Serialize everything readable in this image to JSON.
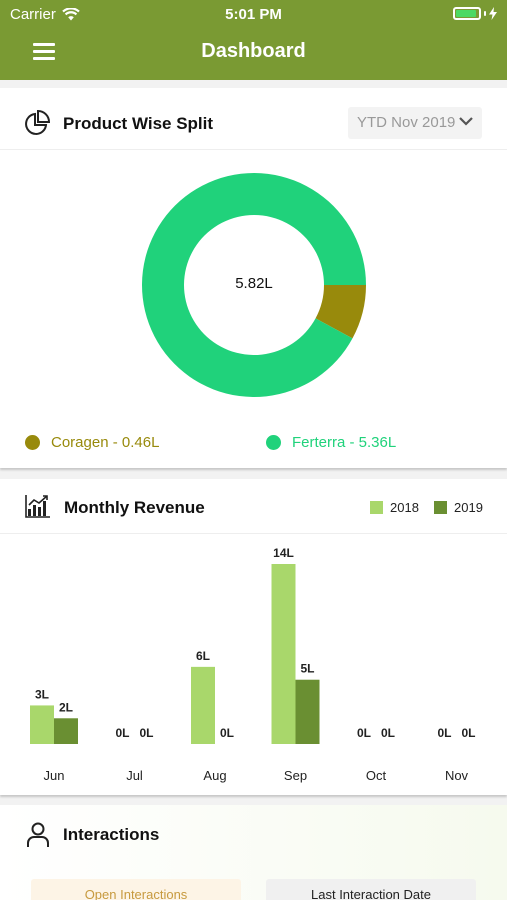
{
  "status_bar": {
    "carrier": "Carrier",
    "time": "5:01 PM"
  },
  "nav": {
    "title": "Dashboard",
    "menu_icon": "hamburger-menu-icon"
  },
  "product_split": {
    "title": "Product Wise Split",
    "icon": "pie-chart-icon",
    "period": "YTD Nov 2019",
    "center_label": "5.82L",
    "colors": {
      "coragen": "#988a0c",
      "ferterra": "#20d27b"
    },
    "legend": [
      {
        "label": "Coragen - 0.46L",
        "color": "#988a0c"
      },
      {
        "label": "Ferterra - 5.36L",
        "color": "#20d27b"
      }
    ]
  },
  "monthly_revenue": {
    "title": "Monthly Revenue",
    "icon": "bar-chart-icon",
    "legend": [
      {
        "label": "2018",
        "color": "#a9d76b"
      },
      {
        "label": "2019",
        "color": "#6a8f32"
      }
    ]
  },
  "interactions": {
    "title": "Interactions",
    "icon": "user-icon",
    "open_label": "Open Interactions",
    "last_date_label": "Last Interaction Date"
  },
  "chart_data": [
    {
      "type": "pie",
      "labels": [
        "Coragen",
        "Ferterra"
      ],
      "values": [
        0.46,
        5.36
      ],
      "unit": "L",
      "total": 5.82
    },
    {
      "type": "bar",
      "categories": [
        "Jun",
        "Jul",
        "Aug",
        "Sep",
        "Oct",
        "Nov"
      ],
      "series": [
        {
          "name": "2018",
          "values": [
            3,
            0,
            6,
            14,
            0,
            0
          ],
          "labels": [
            "3L",
            "0L",
            "6L",
            "14L",
            "0L",
            "0L"
          ]
        },
        {
          "name": "2019",
          "values": [
            2,
            0,
            0,
            5,
            0,
            0
          ],
          "labels": [
            "2L",
            "0L",
            "0L",
            "5L",
            "0L",
            "0L"
          ]
        }
      ],
      "unit": "L",
      "ylim": [
        0,
        14
      ]
    }
  ]
}
